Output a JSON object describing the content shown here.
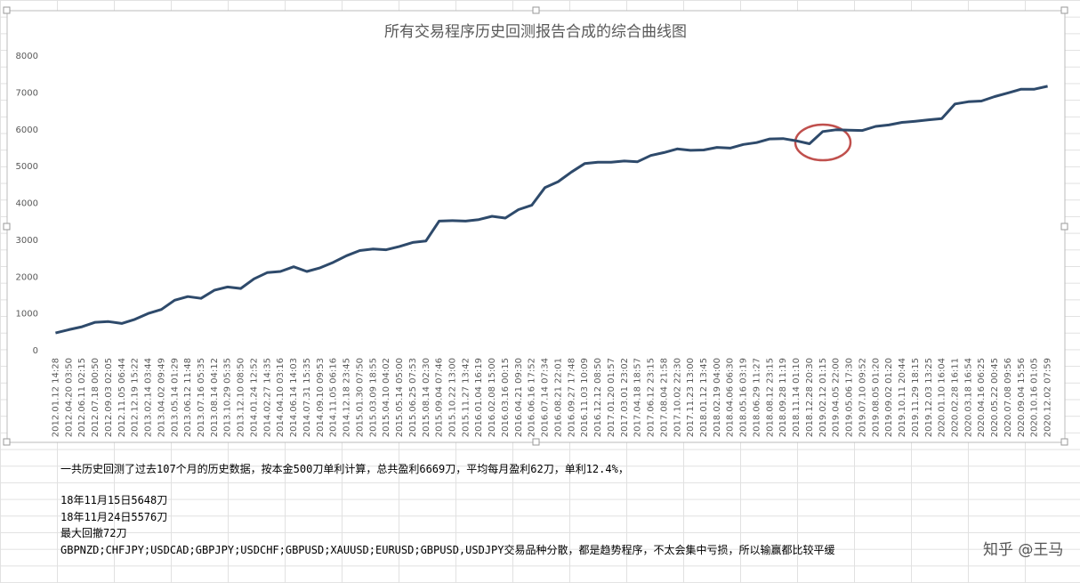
{
  "chart_data": {
    "type": "line",
    "title": "所有交易程序历史回测报告合成的综合曲线图",
    "categories": [
      "2012.01.12 14:28",
      "2012.04.20 03:50",
      "2012.06.11 02:15",
      "2012.07.18 00:50",
      "2012.09.03 02:05",
      "2012.11.05 06:44",
      "2012.12.19 15:22",
      "2013.02.14 03:44",
      "2013.04.02 09:49",
      "2013.05.14 01:29",
      "2013.06.12 11:48",
      "2013.07.16 05:35",
      "2013.08.14 04:12",
      "2013.10.29 05:35",
      "2013.12.10 08:50",
      "2014.01.24 12:52",
      "2014.02.27 14:35",
      "2014.04.10 03:16",
      "2014.06.14 14:03",
      "2014.07.31 15:35",
      "2014.09.10 09:53",
      "2014.11.05 06:16",
      "2014.12.18 23:45",
      "2015.01.30 07:50",
      "2015.03.09 18:55",
      "2015.04.10 04:02",
      "2015.05.14 05:00",
      "2015.06.25 07:53",
      "2015.08.14 02:30",
      "2015.09.04 07:46",
      "2015.10.22 13:00",
      "2015.11.27 13:42",
      "2016.01.04 16:19",
      "2016.02.08 15:00",
      "2016.03.16 00:15",
      "2016.04.21 09:30",
      "2016.06.16 17:52",
      "2016.07.14 07:34",
      "2016.08.21 22:01",
      "2016.09.27 17:48",
      "2016.11.03 10:09",
      "2016.12.12 08:50",
      "2017.01.20 01:57",
      "2017.03.01 23:02",
      "2017.04.18 18:57",
      "2017.06.12 23:15",
      "2017.08.04 21:58",
      "2017.10.02 22:30",
      "2017.11.23 13:00",
      "2018.01.12 13:45",
      "2018.02.19 04:00",
      "2018.04.06 06:30",
      "2018.05.16 03:19",
      "2018.06.29 11:27",
      "2018.08.12 23:15",
      "2018.09.28 11:19",
      "2018.11.14 01:10",
      "2018.12.28 20:30",
      "2019.02.12 01:15",
      "2019.04.05 22:00",
      "2019.05.06 17:30",
      "2019.07.10 09:52",
      "2019.08.05 01:20",
      "2019.09.02 01:20",
      "2019.10.11 20:44",
      "2019.11.29 18:15",
      "2019.12.03 13:25",
      "2020.01.10 16:04",
      "2020.02.28 16:11",
      "2020.03.18 16:54",
      "2020.04.16 06:25",
      "2020.05.22 00:45",
      "2020.07.08 09:56",
      "2020.09.04 15:56",
      "2020.10.16 01:05",
      "2020.12.02 07:59"
    ],
    "values": [
      480,
      570,
      650,
      770,
      790,
      740,
      850,
      1010,
      1120,
      1370,
      1470,
      1420,
      1640,
      1730,
      1690,
      1950,
      2120,
      2150,
      2280,
      2150,
      2250,
      2400,
      2580,
      2720,
      2760,
      2740,
      2830,
      2940,
      2980,
      3520,
      3530,
      3520,
      3560,
      3650,
      3600,
      3830,
      3950,
      4430,
      4590,
      4850,
      5080,
      5120,
      5120,
      5150,
      5130,
      5300,
      5380,
      5480,
      5440,
      5450,
      5520,
      5500,
      5600,
      5650,
      5750,
      5760,
      5700,
      5620,
      5950,
      6000,
      5990,
      5980,
      6090,
      6130,
      6200,
      6230,
      6270,
      6300,
      6700,
      6760,
      6780,
      6900,
      7000,
      7100,
      7100,
      7180
    ],
    "color": "#2e4a6b",
    "ylim": [
      0,
      8000
    ],
    "yticks": [
      0,
      1000,
      2000,
      3000,
      4000,
      5000,
      6000,
      7000,
      8000
    ],
    "grid": false
  },
  "notes": [
    "一共历史回测了过去107个月的历史数据，按本金500刀单利计算，总共盈利6669刀，平均每月盈利62刀，单利12.4%，",
    "18年11月15日5648刀",
    "18年11月24日5576刀",
    "最大回撤72刀",
    "GBPNZD;CHFJPY;USDCAD;GBPJPY;USDCHF;GBPUSD;XAUUSD;EURUSD;GBPUSD,USDJPY交易品种分散，都是趋势程序，不太会集中亏损，所以输赢都比较平缓"
  ],
  "watermark": "知乎 @王马"
}
